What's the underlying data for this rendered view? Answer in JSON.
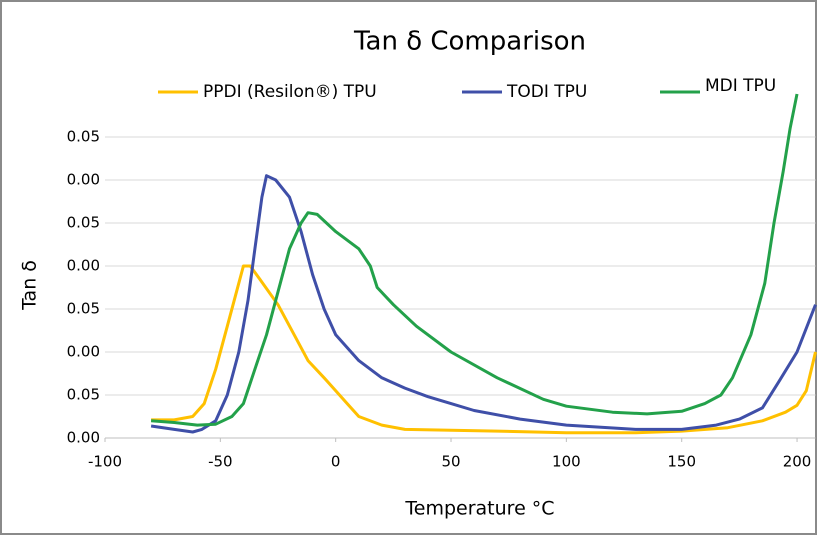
{
  "chart_data": {
    "type": "line",
    "title": "Tan δ Comparison",
    "x_label": "Temperature °C",
    "y_label": "Tan δ",
    "xlim": [
      -100,
      208
    ],
    "xticks": [
      -100,
      -50,
      0,
      50,
      100,
      150,
      200
    ],
    "ylim": [
      0,
      0.4
    ],
    "yticks": [
      {
        "value": 0,
        "label": "0.00"
      },
      0.05,
      {
        "value": 0.1,
        "label": "0.00"
      },
      {
        "value": 0.15,
        "label": "0.05"
      },
      {
        "value": 0.2,
        "label": "0.00"
      },
      {
        "value": 0.25,
        "label": "0.05"
      },
      {
        "value": 0.3,
        "label": "0.00"
      },
      {
        "value": 0.35,
        "label": "0.05"
      }
    ],
    "grid": true,
    "legend": "top",
    "series": [
      {
        "name": "PPDI (Resilon®) TPU",
        "color": "#ffc000",
        "x": [
          -80,
          -70,
          -62,
          -57,
          -52,
          -47,
          -43,
          -40,
          -37,
          -33,
          -25,
          -18,
          -12,
          -5,
          0,
          5,
          10,
          20,
          30,
          50,
          70,
          100,
          130,
          150,
          170,
          185,
          195,
          200,
          204,
          208
        ],
        "values": [
          0.021,
          0.021,
          0.025,
          0.04,
          0.08,
          0.13,
          0.17,
          0.2,
          0.2,
          0.185,
          0.155,
          0.12,
          0.09,
          0.07,
          0.055,
          0.04,
          0.025,
          0.015,
          0.01,
          0.009,
          0.008,
          0.006,
          0.006,
          0.008,
          0.012,
          0.02,
          0.03,
          0.038,
          0.055,
          0.1
        ]
      },
      {
        "name": "TODI TPU",
        "color": "#3f4fa8",
        "x": [
          -80,
          -70,
          -62,
          -58,
          -52,
          -47,
          -42,
          -38,
          -35,
          -32,
          -30,
          -26,
          -20,
          -15,
          -10,
          -5,
          0,
          10,
          20,
          30,
          40,
          50,
          60,
          80,
          100,
          130,
          150,
          165,
          175,
          185,
          192,
          200,
          208
        ],
        "values": [
          0.014,
          0.01,
          0.007,
          0.01,
          0.02,
          0.05,
          0.1,
          0.16,
          0.22,
          0.28,
          0.305,
          0.3,
          0.28,
          0.24,
          0.19,
          0.15,
          0.12,
          0.09,
          0.07,
          0.058,
          0.048,
          0.04,
          0.032,
          0.022,
          0.015,
          0.01,
          0.01,
          0.015,
          0.022,
          0.035,
          0.065,
          0.1,
          0.155
        ]
      },
      {
        "name": "MDI TPU",
        "color": "#23a14a",
        "x": [
          -80,
          -70,
          -60,
          -52,
          -45,
          -40,
          -35,
          -30,
          -25,
          -20,
          -15,
          -12,
          -8,
          0,
          10,
          15,
          18,
          25,
          35,
          50,
          70,
          90,
          100,
          120,
          135,
          150,
          160,
          167,
          172,
          180,
          186,
          190,
          194,
          197,
          200
        ],
        "values": [
          0.02,
          0.018,
          0.015,
          0.016,
          0.025,
          0.04,
          0.08,
          0.12,
          0.17,
          0.22,
          0.25,
          0.262,
          0.26,
          0.24,
          0.22,
          0.2,
          0.175,
          0.155,
          0.13,
          0.1,
          0.07,
          0.045,
          0.037,
          0.03,
          0.028,
          0.031,
          0.04,
          0.05,
          0.07,
          0.12,
          0.18,
          0.25,
          0.31,
          0.36,
          0.4
        ]
      }
    ]
  }
}
